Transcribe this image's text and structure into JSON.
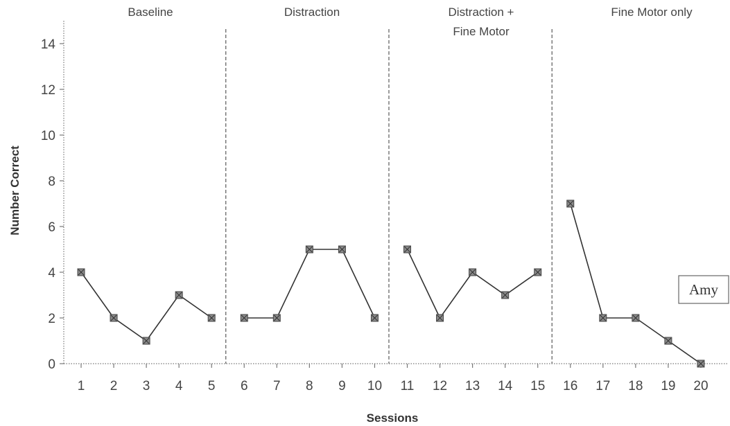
{
  "chart_data": {
    "type": "line",
    "xlabel": "Sessions",
    "ylabel": "Number Correct",
    "ylim": [
      0,
      15
    ],
    "yticks": [
      0,
      2,
      4,
      6,
      8,
      10,
      12,
      14
    ],
    "xticks": [
      1,
      2,
      3,
      4,
      5,
      6,
      7,
      8,
      9,
      10,
      11,
      12,
      13,
      14,
      15,
      16,
      17,
      18,
      19,
      20
    ],
    "grid": false,
    "legend": "none",
    "participant_label": "Amy",
    "phase_change_after": [
      5.5,
      10.5,
      15.5
    ],
    "phases": [
      {
        "label_lines": [
          "Baseline"
        ],
        "x": [
          1,
          2,
          3,
          4,
          5
        ],
        "values": [
          4,
          2,
          1,
          3,
          2
        ]
      },
      {
        "label_lines": [
          "Distraction"
        ],
        "x": [
          6,
          7,
          8,
          9,
          10
        ],
        "values": [
          2,
          2,
          5,
          5,
          2
        ]
      },
      {
        "label_lines": [
          "Distraction +",
          "Fine Motor"
        ],
        "x": [
          11,
          12,
          13,
          14,
          15
        ],
        "values": [
          5,
          2,
          4,
          3,
          4
        ]
      },
      {
        "label_lines": [
          "Fine Motor only"
        ],
        "x": [
          16,
          17,
          18,
          19,
          20
        ],
        "values": [
          7,
          2,
          2,
          1,
          0
        ]
      }
    ],
    "colors": {
      "line": "#333333",
      "marker": "#555555",
      "axis": "#777777",
      "text": "#444444"
    }
  }
}
